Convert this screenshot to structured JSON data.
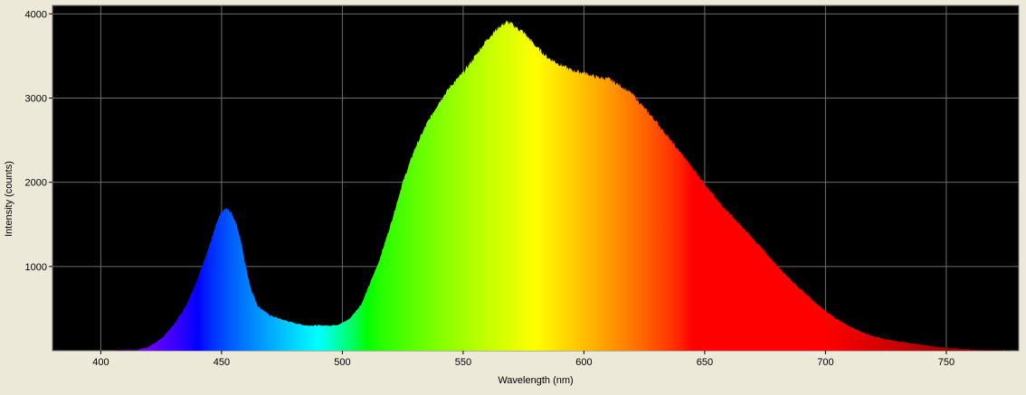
{
  "chart_data": {
    "type": "area",
    "title": "",
    "xlabel": "Wavelength (nm)",
    "ylabel": "Intensity (counts)",
    "xlim": [
      380,
      780
    ],
    "ylim": [
      0,
      4100
    ],
    "grid": true,
    "x_ticks": [
      400,
      450,
      500,
      550,
      600,
      650,
      700,
      750
    ],
    "y_ticks": [
      1000,
      2000,
      3000,
      4000
    ],
    "x_tick_labels": [
      "400",
      "450",
      "500",
      "550",
      "600",
      "650",
      "700",
      "750"
    ],
    "y_tick_labels": [
      "1000",
      "2000",
      "3000",
      "4000"
    ],
    "series": [
      {
        "fill": "spectral-wavelength-colors",
        "x": [
          380,
          405,
          415,
          420,
          425,
          430,
          435,
          440,
          445,
          448,
          450,
          452,
          454,
          456,
          458,
          460,
          462,
          465,
          470,
          475,
          480,
          485,
          490,
          495,
          498,
          500,
          503,
          505,
          508,
          510,
          515,
          520,
          525,
          530,
          535,
          540,
          545,
          550,
          555,
          560,
          565,
          568,
          570,
          575,
          580,
          585,
          590,
          595,
          600,
          605,
          610,
          615,
          620,
          625,
          630,
          635,
          640,
          645,
          650,
          655,
          660,
          665,
          670,
          675,
          680,
          685,
          690,
          695,
          700,
          705,
          710,
          715,
          720,
          725,
          730,
          735,
          740,
          745,
          750,
          760,
          770,
          780
        ],
        "y": [
          0,
          0,
          10,
          50,
          140,
          300,
          520,
          850,
          1250,
          1520,
          1650,
          1690,
          1640,
          1520,
          1300,
          1000,
          750,
          530,
          420,
          370,
          330,
          300,
          300,
          300,
          310,
          330,
          380,
          450,
          560,
          700,
          1050,
          1500,
          2000,
          2400,
          2700,
          2950,
          3150,
          3300,
          3500,
          3700,
          3850,
          3900,
          3880,
          3780,
          3620,
          3480,
          3400,
          3330,
          3300,
          3250,
          3230,
          3150,
          3050,
          2880,
          2720,
          2530,
          2350,
          2170,
          1980,
          1790,
          1640,
          1480,
          1330,
          1170,
          1010,
          860,
          720,
          590,
          470,
          370,
          290,
          220,
          170,
          135,
          110,
          90,
          70,
          50,
          35,
          15,
          5,
          0
        ]
      }
    ]
  }
}
